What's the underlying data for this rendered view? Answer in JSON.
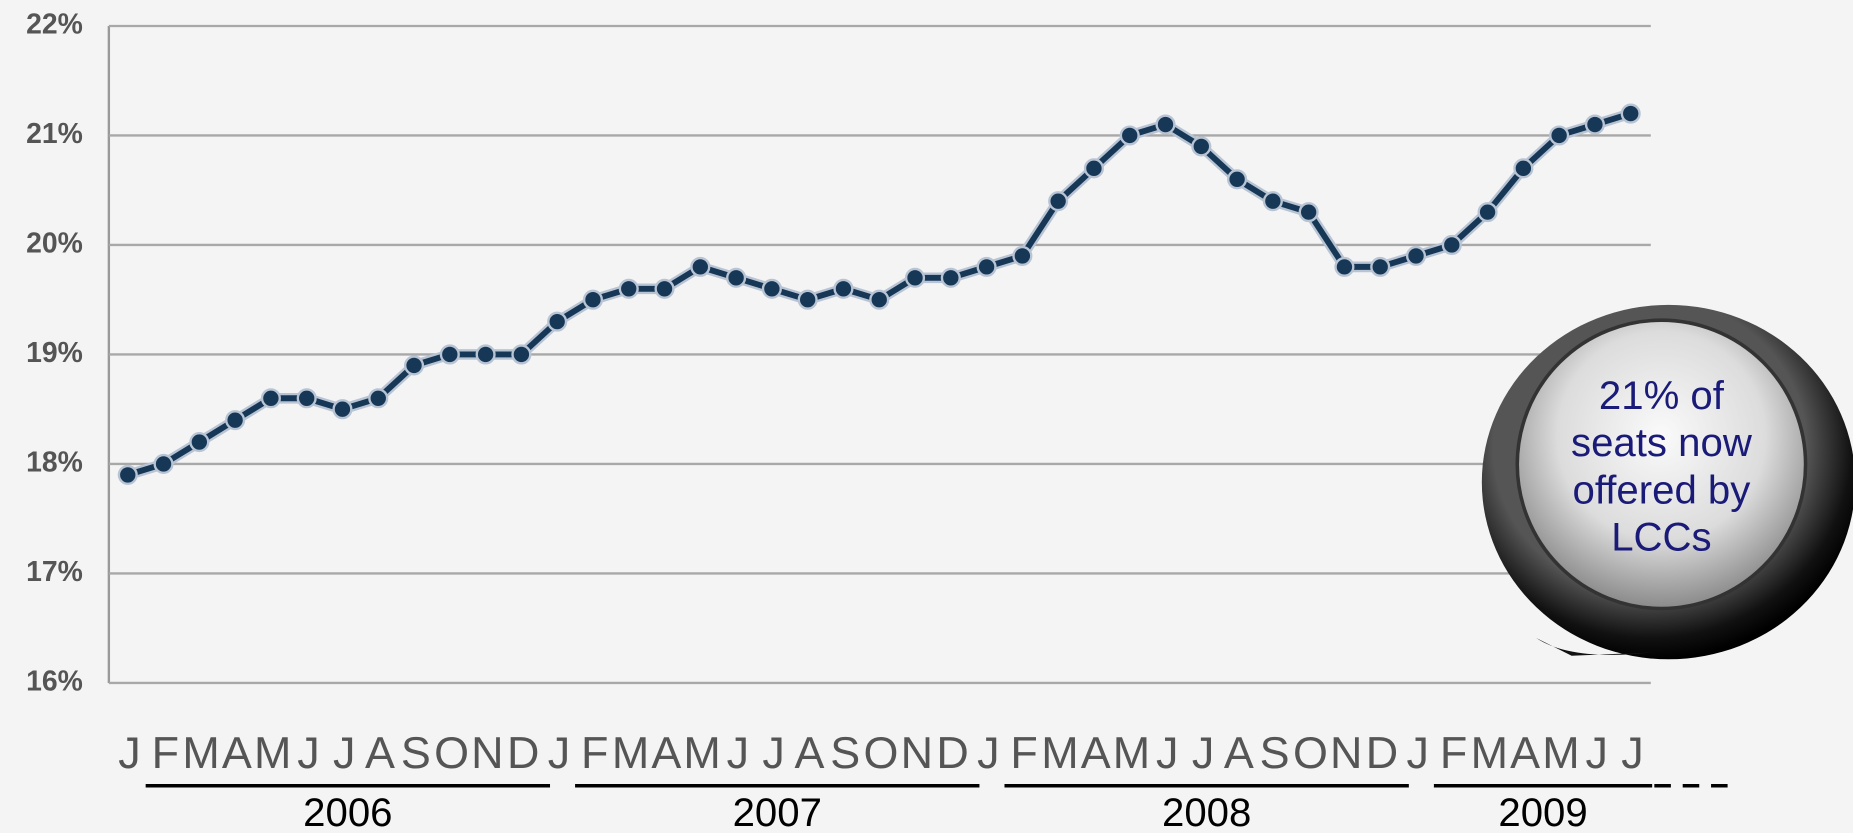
{
  "chart_data": {
    "type": "line",
    "categories": [
      "J",
      "F",
      "M",
      "A",
      "M",
      "J",
      "J",
      "A",
      "S",
      "O",
      "N",
      "D",
      "J",
      "F",
      "M",
      "A",
      "M",
      "J",
      "J",
      "A",
      "S",
      "O",
      "N",
      "D",
      "J",
      "F",
      "M",
      "A",
      "M",
      "J",
      "J",
      "A",
      "S",
      "O",
      "N",
      "D",
      "J",
      "F",
      "M",
      "A",
      "M",
      "J",
      "J"
    ],
    "year_labels": [
      "2006",
      "2007",
      "2008",
      "2009"
    ],
    "series": [
      {
        "color": "#173757",
        "values": [
          17.9,
          18.0,
          18.2,
          18.4,
          18.6,
          18.6,
          18.5,
          18.6,
          18.9,
          19.0,
          19.0,
          19.0,
          19.3,
          19.5,
          19.6,
          19.6,
          19.8,
          19.7,
          19.6,
          19.5,
          19.6,
          19.5,
          19.7,
          19.7,
          19.8,
          19.9,
          20.4,
          20.7,
          21.0,
          21.1,
          20.9,
          20.6,
          20.4,
          20.3,
          19.8,
          19.8,
          19.9,
          20.0,
          20.3,
          20.7,
          21.0,
          21.1,
          21.2
        ]
      }
    ],
    "ylim": [
      16,
      22
    ],
    "yticks": [
      {
        "value": 16,
        "label": "16%"
      },
      {
        "value": 17,
        "label": "17%"
      },
      {
        "value": 18,
        "label": "18%"
      },
      {
        "value": 19,
        "label": "19%"
      },
      {
        "value": 20,
        "label": "20%"
      },
      {
        "value": 21,
        "label": "21%"
      },
      {
        "value": 22,
        "label": "22%"
      }
    ],
    "grid": true,
    "annotation": [
      "21% of",
      "seats now",
      "offered by",
      "LCCs"
    ]
  }
}
